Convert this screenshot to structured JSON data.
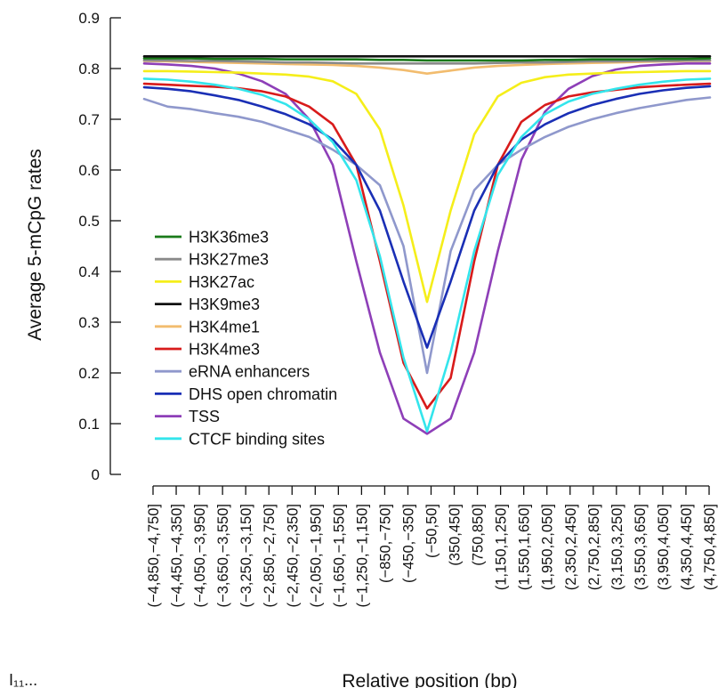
{
  "chart_data": {
    "type": "line",
    "title": "",
    "xlabel": "Relative position (bp)",
    "ylabel": "Average 5-mCpG rates",
    "ylim": [
      0,
      0.9
    ],
    "yticks": [
      "0",
      "0.1",
      "0.2",
      "0.3",
      "0.4",
      "0.5",
      "0.6",
      "0.7",
      "0.8",
      "0.9"
    ],
    "categories": [
      "(−4,850,−4,750]",
      "(−4,450,−4,350]",
      "(−4,050,−3,950]",
      "(−3,650,−3,550]",
      "(−3,250,−3,150]",
      "(−2,850,−2,750]",
      "(−2,450,−2,350]",
      "(−2,050,−1,950]",
      "(−1,650,−1,550]",
      "(−1,250,−1,150]",
      "(−850,−750]",
      "(−450,−350]",
      "(−50,50]",
      "(350,450]",
      "(750,850]",
      "(1,150,1,250]",
      "(1,550,1,650]",
      "(1,950,2,050]",
      "(2,350,2,450]",
      "(2,750,2,850]",
      "(3,150,3,250]",
      "(3,550,3,650]",
      "(3,950,4,050]",
      "(4,350,4,450]",
      "(4,750,4,850]"
    ],
    "legend_position": "lower-left",
    "grid": false,
    "series": [
      {
        "name": "H3K36me3",
        "color": "#1a7a1a",
        "values": [
          0.82,
          0.82,
          0.82,
          0.819,
          0.819,
          0.819,
          0.818,
          0.818,
          0.818,
          0.818,
          0.817,
          0.817,
          0.816,
          0.816,
          0.816,
          0.816,
          0.816,
          0.817,
          0.817,
          0.818,
          0.818,
          0.818,
          0.819,
          0.819,
          0.82
        ]
      },
      {
        "name": "H3K27me3",
        "color": "#8a8a8a",
        "values": [
          0.816,
          0.816,
          0.815,
          0.815,
          0.814,
          0.813,
          0.812,
          0.812,
          0.811,
          0.81,
          0.81,
          0.81,
          0.81,
          0.81,
          0.81,
          0.811,
          0.812,
          0.812,
          0.813,
          0.814,
          0.814,
          0.815,
          0.815,
          0.816,
          0.816
        ]
      },
      {
        "name": "H3K27ac",
        "color": "#f5ee1a",
        "values": [
          0.795,
          0.795,
          0.794,
          0.793,
          0.792,
          0.79,
          0.788,
          0.784,
          0.775,
          0.75,
          0.68,
          0.53,
          0.34,
          0.52,
          0.67,
          0.745,
          0.772,
          0.783,
          0.788,
          0.79,
          0.792,
          0.793,
          0.794,
          0.795,
          0.795
        ]
      },
      {
        "name": "H3K9me3",
        "color": "#111111",
        "values": [
          0.824,
          0.824,
          0.824,
          0.824,
          0.824,
          0.824,
          0.824,
          0.824,
          0.824,
          0.824,
          0.824,
          0.824,
          0.824,
          0.824,
          0.824,
          0.824,
          0.824,
          0.824,
          0.824,
          0.824,
          0.824,
          0.824,
          0.824,
          0.824,
          0.824
        ]
      },
      {
        "name": "H3K4me1",
        "color": "#f2bc6e",
        "values": [
          0.815,
          0.814,
          0.813,
          0.812,
          0.811,
          0.81,
          0.809,
          0.808,
          0.807,
          0.805,
          0.802,
          0.797,
          0.79,
          0.796,
          0.802,
          0.805,
          0.807,
          0.809,
          0.81,
          0.811,
          0.812,
          0.813,
          0.814,
          0.815,
          0.815
        ]
      },
      {
        "name": "H3K4me3",
        "color": "#d81b1b",
        "values": [
          0.77,
          0.768,
          0.766,
          0.764,
          0.761,
          0.755,
          0.745,
          0.725,
          0.69,
          0.61,
          0.42,
          0.22,
          0.13,
          0.19,
          0.42,
          0.61,
          0.695,
          0.728,
          0.745,
          0.753,
          0.758,
          0.763,
          0.766,
          0.768,
          0.77
        ]
      },
      {
        "name": "eRNA enhancers",
        "color": "#8f98cc",
        "values": [
          0.74,
          0.725,
          0.72,
          0.712,
          0.705,
          0.695,
          0.68,
          0.665,
          0.64,
          0.61,
          0.57,
          0.45,
          0.2,
          0.44,
          0.56,
          0.61,
          0.64,
          0.665,
          0.685,
          0.7,
          0.712,
          0.722,
          0.73,
          0.738,
          0.743
        ]
      },
      {
        "name": "DHS open chromatin",
        "color": "#1a2fb5",
        "values": [
          0.763,
          0.76,
          0.755,
          0.747,
          0.738,
          0.725,
          0.71,
          0.69,
          0.66,
          0.61,
          0.52,
          0.38,
          0.25,
          0.38,
          0.52,
          0.61,
          0.66,
          0.69,
          0.712,
          0.728,
          0.74,
          0.75,
          0.757,
          0.762,
          0.765
        ]
      },
      {
        "name": "TSS",
        "color": "#8e3fb8",
        "values": [
          0.81,
          0.808,
          0.805,
          0.8,
          0.79,
          0.775,
          0.75,
          0.7,
          0.61,
          0.42,
          0.24,
          0.11,
          0.08,
          0.11,
          0.24,
          0.44,
          0.62,
          0.715,
          0.76,
          0.785,
          0.798,
          0.805,
          0.808,
          0.81,
          0.81
        ]
      },
      {
        "name": "CTCF binding sites",
        "color": "#33e5ec",
        "values": [
          0.78,
          0.778,
          0.774,
          0.768,
          0.76,
          0.748,
          0.73,
          0.7,
          0.655,
          0.58,
          0.43,
          0.23,
          0.085,
          0.24,
          0.44,
          0.59,
          0.665,
          0.71,
          0.735,
          0.75,
          0.76,
          0.768,
          0.774,
          0.778,
          0.78
        ]
      }
    ]
  },
  "footer_mark": "I₁₁..."
}
